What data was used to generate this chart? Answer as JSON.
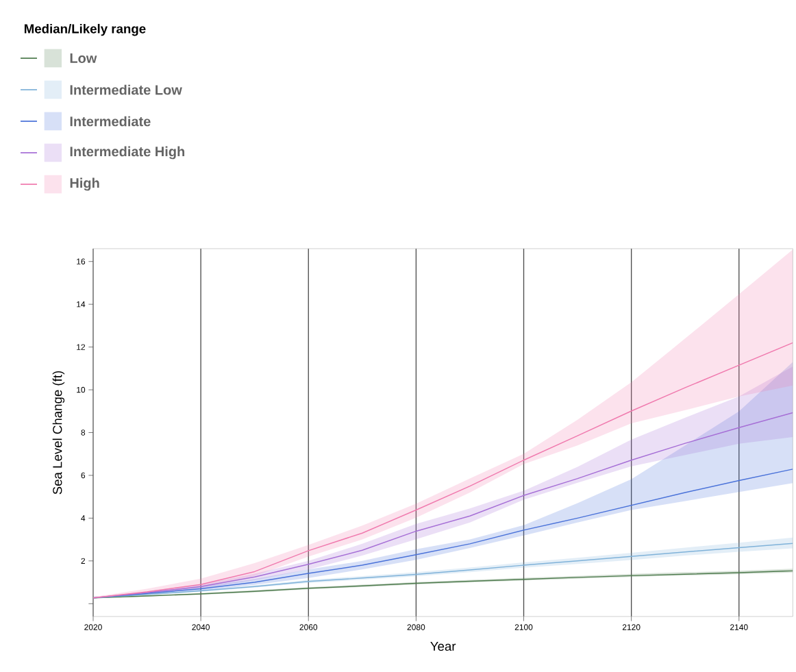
{
  "chart_data": {
    "type": "line",
    "xlabel": "Year",
    "ylabel": "Sea Level Change (ft)",
    "legend_title": "Median/Likely range",
    "legend": "top left",
    "grid": "x",
    "x": [
      2020,
      2030,
      2040,
      2050,
      2060,
      2070,
      2080,
      2090,
      2100,
      2110,
      2120,
      2130,
      2140,
      2150
    ],
    "xlim": [
      2020,
      2150
    ],
    "xticks": [
      2020,
      2040,
      2060,
      2080,
      2100,
      2120,
      2140
    ],
    "ylim": [
      -0.6,
      16.6
    ],
    "yticks": [
      {
        "value": 0,
        "label": null
      },
      2,
      4,
      6,
      8,
      10,
      12,
      14,
      16
    ],
    "series": [
      {
        "name": "Low",
        "color": "#4d7a4d",
        "values": [
          0.27,
          0.36,
          0.46,
          0.58,
          0.72,
          0.83,
          0.95,
          1.05,
          1.14,
          1.23,
          1.31,
          1.38,
          1.45,
          1.54
        ],
        "lower": [
          0.25,
          0.33,
          0.42,
          0.53,
          0.67,
          0.78,
          0.9,
          0.99,
          1.08,
          1.17,
          1.25,
          1.32,
          1.38,
          1.46
        ],
        "upper": [
          0.29,
          0.39,
          0.5,
          0.63,
          0.77,
          0.89,
          1.01,
          1.11,
          1.21,
          1.3,
          1.39,
          1.47,
          1.54,
          1.63
        ]
      },
      {
        "name": "Intermediate Low",
        "color": "#7fb2d9",
        "values": [
          0.27,
          0.43,
          0.6,
          0.8,
          1.04,
          1.2,
          1.37,
          1.58,
          1.8,
          2.0,
          2.21,
          2.42,
          2.62,
          2.82
        ],
        "lower": [
          0.25,
          0.4,
          0.56,
          0.75,
          0.97,
          1.12,
          1.28,
          1.47,
          1.68,
          1.86,
          2.04,
          2.25,
          2.43,
          2.59
        ],
        "upper": [
          0.29,
          0.46,
          0.65,
          0.86,
          1.11,
          1.29,
          1.47,
          1.69,
          1.93,
          2.15,
          2.38,
          2.62,
          2.85,
          3.09
        ]
      },
      {
        "name": "Intermediate",
        "color": "#4a72d9",
        "values": [
          0.27,
          0.48,
          0.7,
          1.0,
          1.42,
          1.8,
          2.29,
          2.8,
          3.44,
          4.0,
          4.6,
          5.2,
          5.76,
          6.29
        ],
        "lower": [
          0.25,
          0.42,
          0.6,
          0.88,
          1.2,
          1.6,
          2.05,
          2.6,
          3.19,
          3.8,
          4.38,
          4.8,
          5.22,
          5.64
        ],
        "upper": [
          0.3,
          0.54,
          0.8,
          1.15,
          1.6,
          2.0,
          2.55,
          3.0,
          3.67,
          4.7,
          5.82,
          7.4,
          8.99,
          11.3
        ]
      },
      {
        "name": "Intermediate High",
        "color": "#a66fd6",
        "values": [
          0.27,
          0.52,
          0.8,
          1.25,
          1.84,
          2.5,
          3.39,
          4.1,
          5.06,
          5.85,
          6.71,
          7.5,
          8.23,
          8.93
        ],
        "lower": [
          0.25,
          0.46,
          0.7,
          1.1,
          1.6,
          2.25,
          3.01,
          3.8,
          4.86,
          5.65,
          6.42,
          6.95,
          7.48,
          7.79
        ],
        "upper": [
          0.3,
          0.58,
          0.9,
          1.4,
          2.0,
          2.8,
          3.73,
          4.45,
          5.28,
          6.4,
          7.67,
          8.7,
          9.69,
          11.09
        ]
      },
      {
        "name": "High",
        "color": "#f07aae",
        "values": [
          0.27,
          0.55,
          0.9,
          1.5,
          2.48,
          3.3,
          4.38,
          5.5,
          6.71,
          7.85,
          9.01,
          10.1,
          11.15,
          12.2
        ],
        "lower": [
          0.25,
          0.48,
          0.75,
          1.3,
          2.2,
          3.0,
          4.02,
          5.2,
          6.53,
          7.4,
          8.43,
          9.05,
          9.69,
          10.2
        ],
        "upper": [
          0.31,
          0.7,
          1.17,
          1.9,
          2.75,
          3.65,
          4.68,
          5.85,
          7.01,
          8.6,
          10.35,
          12.4,
          14.47,
          16.56
        ]
      }
    ]
  }
}
